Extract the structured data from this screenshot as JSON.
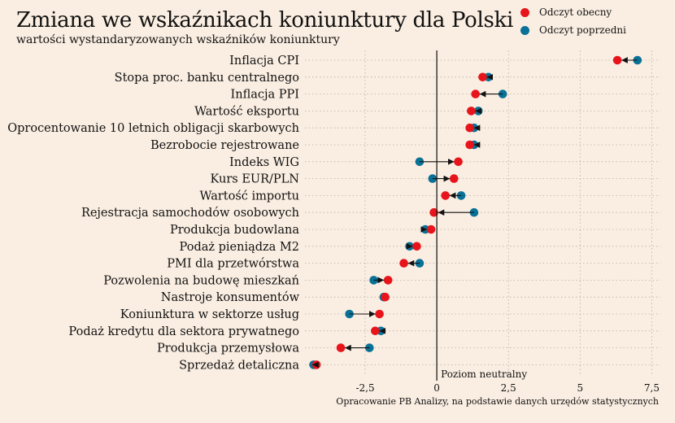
{
  "title": "Zmiana we wskaźnikach koniunktury dla Polski",
  "subtitle": "wartości wystandaryzowanych wskaźników koniunktury",
  "source": "Opracowanie PB Analizy, na podstawie danych urzędów statystycznych",
  "neutral_label": "Poziom neutralny",
  "colors": {
    "current": "#e8141b",
    "previous": "#0a7196",
    "background": "#faeee2"
  },
  "chart_data": {
    "type": "scatter",
    "title": "Zmiana we wskaźnikach koniunktury dla Polski",
    "subtitle": "wartości wystandaryzowanych wskaźników koniunktury",
    "xlim": [
      -4.6,
      7.8
    ],
    "xticks": [
      -2.5,
      0,
      2.5,
      5,
      7.5
    ],
    "xtick_labels": [
      "-2,5",
      "0",
      "2,5",
      "5",
      "7,5"
    ],
    "grid": true,
    "legend_position": "top-right",
    "series": [
      {
        "name": "Odczyt obecny",
        "color": "#e8141b"
      },
      {
        "name": "Odczyt poprzedni",
        "color": "#0a7196"
      }
    ],
    "categories": [
      "Inflacja CPI",
      "Stopa proc. banku centralnego",
      "Inflacja PPI",
      "Wartość eksportu",
      "Oprocentowanie 10 letnich obligacji skarbowych",
      "Bezrobocie rejestrowane",
      "Indeks WIG",
      "Kurs EUR/PLN",
      "Wartość importu",
      "Rejestracja samochodów osobowych",
      "Produkcja budowlana",
      "Podaż pieniądza M2",
      "PMI dla przetwórstwa",
      "Pozwolenia na budowę mieszkań",
      "Nastroje konsumentów",
      "Koniunktura w sektorze usług",
      "Podaż kredytu dla sektora prywatnego",
      "Produkcja przemysłowa",
      "Sprzedaż detaliczna"
    ],
    "current": [
      6.3,
      1.6,
      1.35,
      1.2,
      1.15,
      1.15,
      0.75,
      0.6,
      0.3,
      -0.1,
      -0.2,
      -0.7,
      -1.15,
      -1.7,
      -1.8,
      -2.0,
      -2.15,
      -3.35,
      -4.2
    ],
    "previous": [
      7.0,
      1.8,
      2.3,
      1.45,
      1.3,
      1.3,
      -0.6,
      -0.15,
      0.85,
      1.3,
      -0.4,
      -0.95,
      -0.6,
      -2.2,
      -1.85,
      -3.05,
      -1.95,
      -2.35,
      -4.3
    ]
  }
}
